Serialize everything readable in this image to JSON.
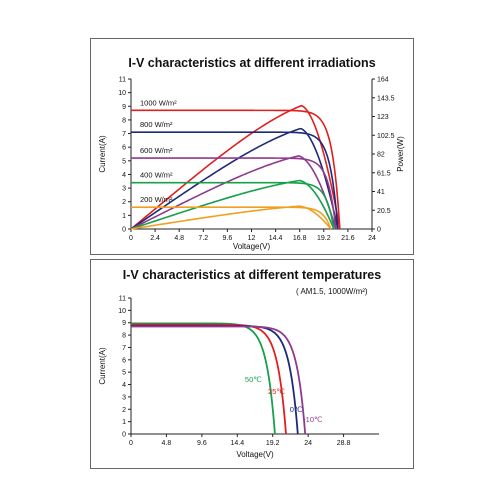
{
  "chart_data": [
    {
      "type": "line",
      "title": "I-V characteristics at different irradiations",
      "xlabel": "Voltage(V)",
      "ylabel": "Current(A)",
      "y2label": "Power(W)",
      "xlim": [
        0,
        24
      ],
      "ylim": [
        0,
        11
      ],
      "y2lim": [
        0,
        164
      ],
      "xticks": [
        "0",
        "2.4",
        "4.8",
        "7.2",
        "9.6",
        "12",
        "14.4",
        "16.8",
        "19.2",
        "21.6",
        "24"
      ],
      "yticks": [
        "0",
        "1",
        "2",
        "3",
        "4",
        "5",
        "6",
        "7",
        "8",
        "9",
        "10",
        "11"
      ],
      "y2ticks": [
        "0",
        "20.5",
        "41",
        "61.5",
        "82",
        "102.5",
        "123",
        "143.5",
        "164"
      ],
      "grid": false,
      "series": [
        {
          "name": "1000 W/m²",
          "color": "#e0201e",
          "isc": 8.7,
          "voc": 20.8,
          "vmp": 17.0,
          "pmax": 135
        },
        {
          "name": "800 W/m²",
          "color": "#1c2a7a",
          "isc": 7.1,
          "voc": 20.6,
          "vmp": 16.9,
          "pmax": 110
        },
        {
          "name": "600 W/m²",
          "color": "#8e3a8e",
          "isc": 5.2,
          "voc": 20.4,
          "vmp": 16.7,
          "pmax": 80
        },
        {
          "name": "400 W/m²",
          "color": "#16a04a",
          "isc": 3.4,
          "voc": 20.2,
          "vmp": 16.8,
          "pmax": 53
        },
        {
          "name": "200 W/m²",
          "color": "#f0a020",
          "isc": 1.6,
          "voc": 19.9,
          "vmp": 16.8,
          "pmax": 25
        }
      ]
    },
    {
      "type": "line",
      "title": "I-V characteristics at different temperatures",
      "subtitle": "( AM1.5, 1000W/m²)",
      "xlabel": "Voltage(V)",
      "ylabel": "Current(A)",
      "xlim": [
        0,
        33.6
      ],
      "ylim": [
        0,
        11
      ],
      "xticks": [
        "0",
        "4.8",
        "9.6",
        "14.4",
        "19.2",
        "24",
        "28.8"
      ],
      "yticks": [
        "0",
        "1",
        "2",
        "3",
        "4",
        "5",
        "6",
        "7",
        "8",
        "9",
        "10",
        "11"
      ],
      "grid": false,
      "series": [
        {
          "name": "50℃",
          "color": "#16a04a",
          "isc": 8.95,
          "voc": 19.5
        },
        {
          "name": "25℃",
          "color": "#e0201e",
          "isc": 8.85,
          "voc": 21.0
        },
        {
          "name": "0℃",
          "color": "#1c2a7a",
          "isc": 8.75,
          "voc": 22.6
        },
        {
          "name": "-10℃",
          "color": "#8e3a8e",
          "isc": 8.7,
          "voc": 23.6
        }
      ]
    }
  ]
}
